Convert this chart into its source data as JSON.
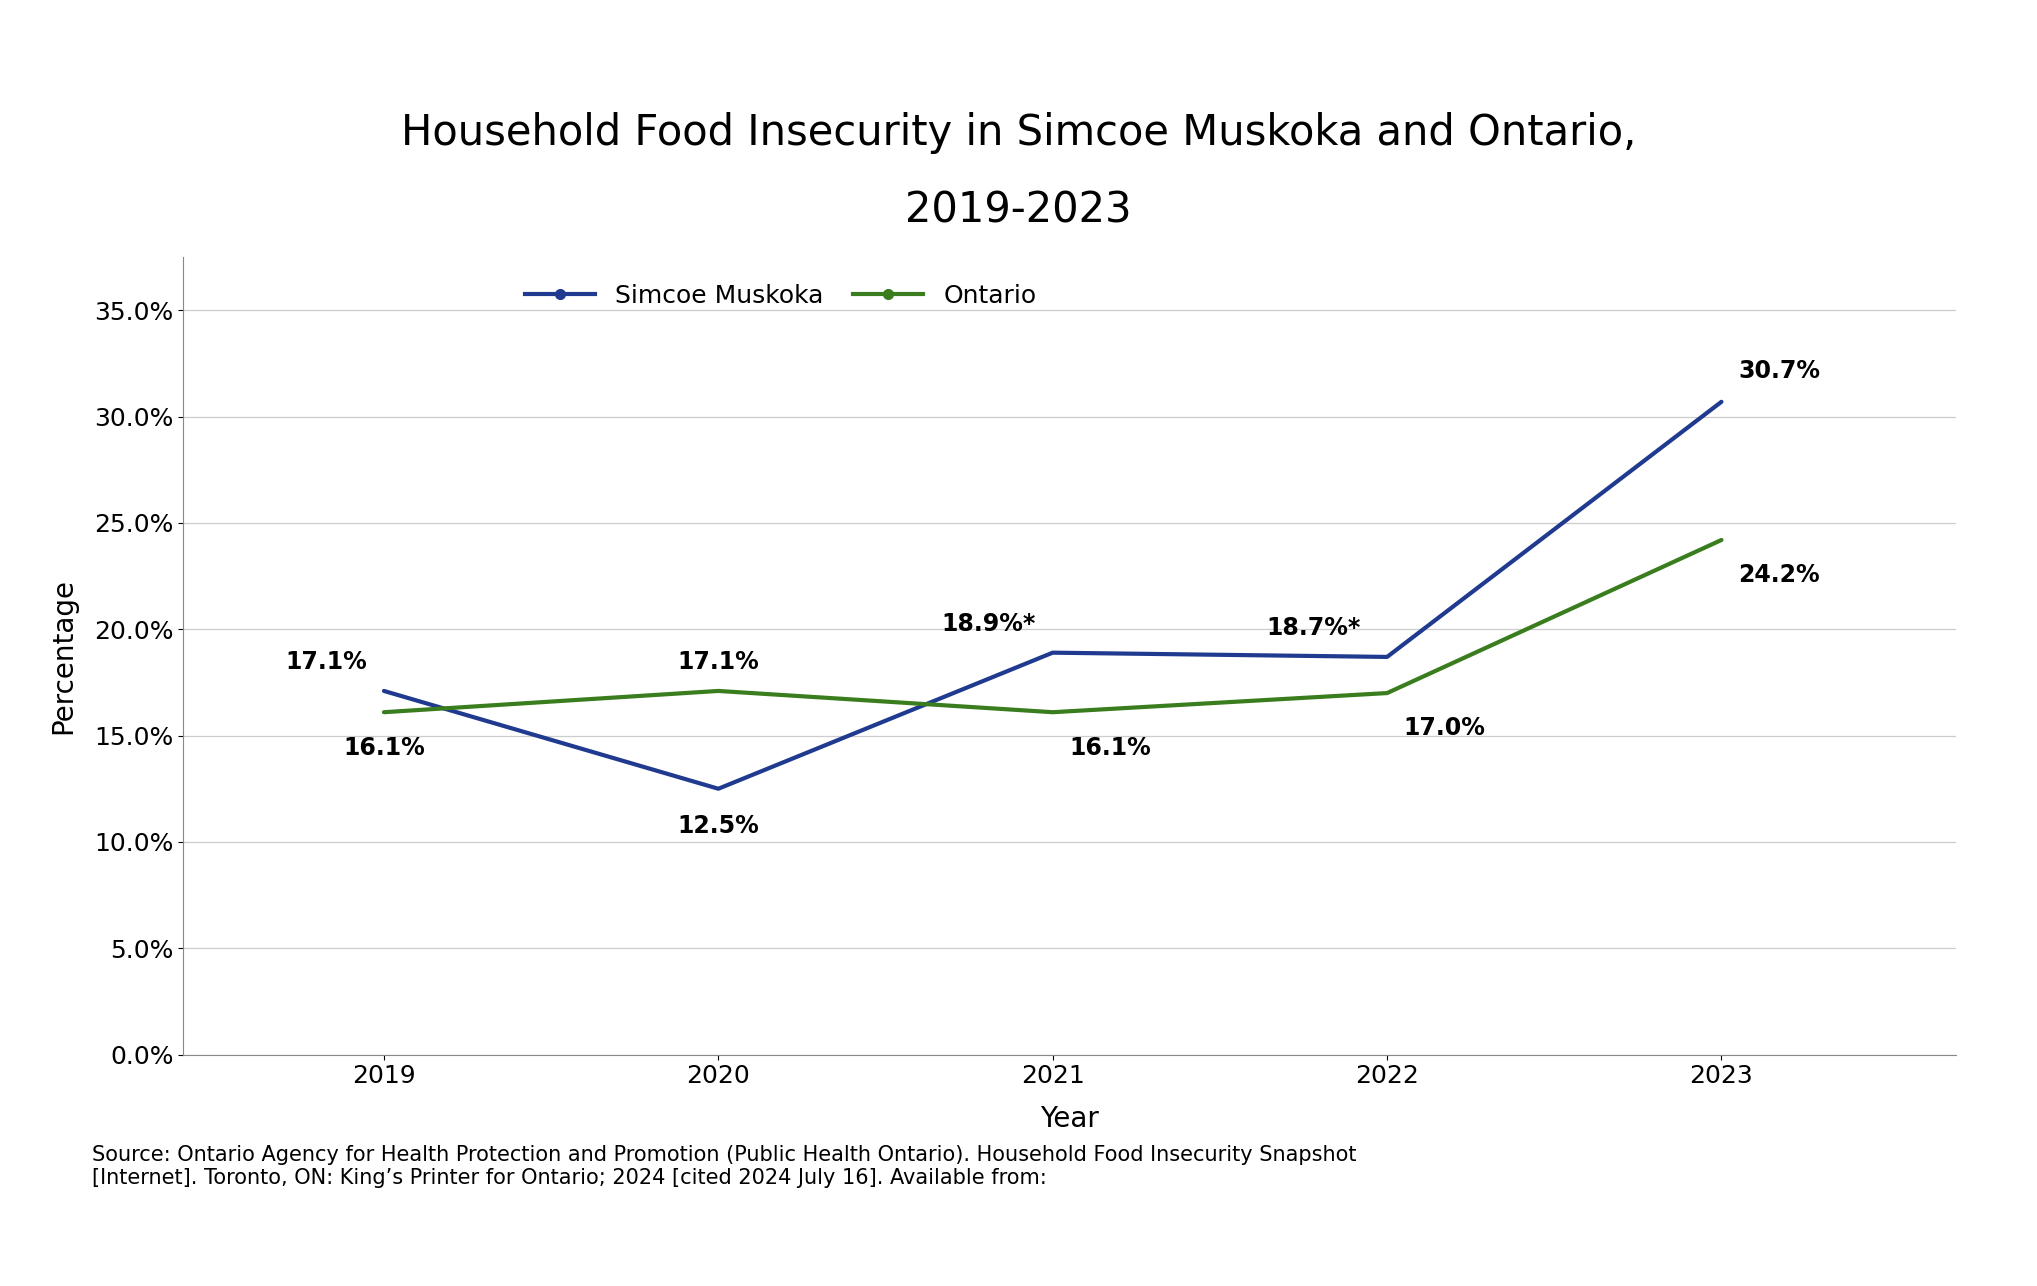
{
  "title_line1": "Household Food Insecurity in Simcoe Muskoka and Ontario,",
  "title_line2": "2019-2023",
  "xlabel": "Year",
  "ylabel": "Percentage",
  "years": [
    2019,
    2020,
    2021,
    2022,
    2023
  ],
  "simcoe_values": [
    17.1,
    12.5,
    18.9,
    18.7,
    30.7
  ],
  "ontario_values": [
    16.1,
    17.1,
    16.1,
    17.0,
    24.2
  ],
  "simcoe_labels": [
    "17.1%",
    "12.5%",
    "18.9%*",
    "18.7%*",
    "30.7%"
  ],
  "ontario_labels": [
    "16.1%",
    "17.1%",
    "16.1%",
    "17.0%",
    "24.2%"
  ],
  "simcoe_label_ha": [
    "left",
    "center",
    "left",
    "right",
    "left"
  ],
  "ontario_label_ha": [
    "center",
    "center",
    "center",
    "center",
    "right"
  ],
  "simcoe_color": "#1f3a8f",
  "ontario_color": "#3a7d1e",
  "ylim": [
    0,
    37.5
  ],
  "yticks": [
    0.0,
    5.0,
    10.0,
    15.0,
    20.0,
    25.0,
    30.0,
    35.0
  ],
  "source_text": "Source: Ontario Agency for Health Protection and Promotion (Public Health Ontario). Household Food Insecurity Snapshot\n[Internet]. Toronto, ON: King’s Printer for Ontario; 2024 [cited 2024 July 16]. Available from:",
  "background_color": "#ffffff",
  "line_width": 3.0,
  "title_fontsize": 30,
  "axis_label_fontsize": 20,
  "tick_fontsize": 18,
  "legend_fontsize": 18,
  "annotation_fontsize": 17,
  "source_fontsize": 15
}
